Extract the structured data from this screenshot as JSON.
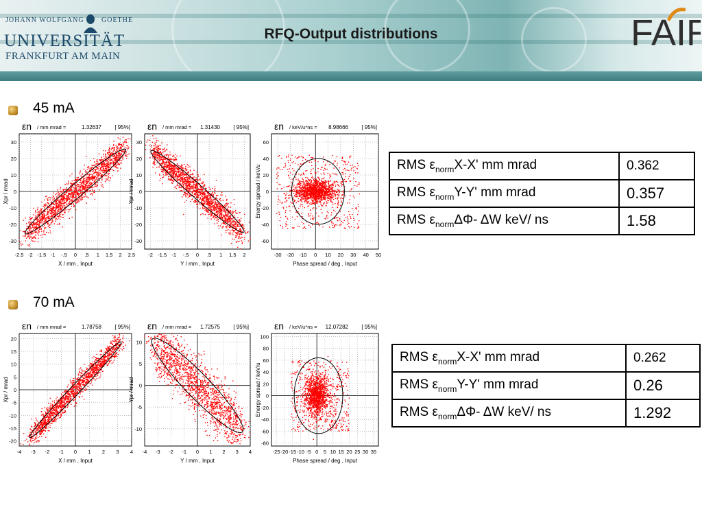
{
  "header": {
    "title": "RFQ-Output distributions",
    "university": {
      "top_left": "JOHANN WOLFGANG",
      "top_right": "GOETHE",
      "name": "UNIVERSITÄT",
      "city": "FRANKFURT AM MAIN"
    },
    "fair_logo": "FAIR"
  },
  "sections": [
    {
      "heading": "45 mA",
      "table": [
        {
          "label_pre": "RMS ε",
          "label_sub": "norm",
          "label_post": "X-X'  mm mrad",
          "value": "0.362"
        },
        {
          "label_pre": "RMS ε",
          "label_sub": "norm",
          "label_post": "Y-Y'  mm mrad",
          "value": "0.357"
        },
        {
          "label_pre": "RMS ε",
          "label_sub": "norm",
          "label_post": "ΔΦ- ΔW keV/ ns",
          "value": "1.58"
        }
      ]
    },
    {
      "heading": "70 mA",
      "table": [
        {
          "label_pre": "RMS ε",
          "label_sub": "norm",
          "label_post": "X-X'  mm mrad",
          "value": "0.262"
        },
        {
          "label_pre": "RMS ε",
          "label_sub": "norm",
          "label_post": "Y-Y'  mm mrad",
          "value": "0.26"
        },
        {
          "label_pre": "RMS ε",
          "label_sub": "norm",
          "label_post": "ΔΦ- ΔW keV/ ns",
          "value": "1.292"
        }
      ]
    }
  ],
  "chart_data": [
    {
      "type": "scatter",
      "header_symbol": "εn",
      "header_units": "/ mm  mrad =",
      "header_value": "1.32637",
      "header_pct": "[ 95%]",
      "xlabel": "X / mm ,  Input",
      "ylabel": "Xpr / mrad",
      "xlim": [
        -2.5,
        2.5
      ],
      "ylim": [
        -35,
        35
      ],
      "xticks": [
        "-2.5",
        "-2",
        "-1.5",
        "-1",
        "-.5",
        "0",
        ".5",
        "1",
        "1.5",
        "2",
        "2.5"
      ],
      "xtick_vals": [
        -2.5,
        -2,
        -1.5,
        -1,
        -0.5,
        0,
        0.5,
        1,
        1.5,
        2,
        2.5
      ],
      "yticks": [
        "30",
        "20",
        "10",
        "0",
        "-10",
        "-20",
        "-30"
      ],
      "ytick_vals": [
        30,
        20,
        10,
        0,
        -10,
        -20,
        -30
      ],
      "distribution": {
        "shape": "tilted-ellipse",
        "slope": 11.5,
        "major": 2.1,
        "minor": 4.8,
        "points": 1800
      },
      "ellipse": {
        "cx": 0,
        "cy": 0,
        "a": 2.2,
        "b": 5.2
      },
      "color": "#ff0000"
    },
    {
      "type": "scatter",
      "header_symbol": "εn",
      "header_units": "/ mm  mrad =",
      "header_value": "1.31430",
      "header_pct": "[ 95%]",
      "xlabel": "Y / mm ,  Input",
      "ylabel": "Ypr / mrad",
      "xlim": [
        -2.25,
        2.25
      ],
      "ylim": [
        -35,
        35
      ],
      "xticks": [
        "-2",
        "-1.5",
        "-1",
        "-.5",
        "0",
        ".5",
        "1",
        "1.5",
        "2"
      ],
      "xtick_vals": [
        -2,
        -1.5,
        -1,
        -0.5,
        0,
        0.5,
        1,
        1.5,
        2
      ],
      "yticks": [
        "30",
        "20",
        "10",
        "0",
        "-10",
        "-20",
        "-30"
      ],
      "ytick_vals": [
        30,
        20,
        10,
        0,
        -10,
        -20,
        -30
      ],
      "distribution": {
        "shape": "tilted-ellipse",
        "slope": -12.5,
        "major": 1.85,
        "minor": 4.8,
        "points": 1800
      },
      "ellipse": {
        "cx": 0,
        "cy": 0,
        "a": 1.95,
        "b": 5.3
      },
      "color": "#ff0000"
    },
    {
      "type": "scatter",
      "header_symbol": "εn",
      "header_units": "/ keV/u*ns =",
      "header_value": "8.98666",
      "header_pct": "[ 95%]",
      "xlabel": "Phase spread / deg ,  Input",
      "ylabel": "Energy spread / keV/u",
      "xlim": [
        -35,
        50
      ],
      "ylim": [
        -70,
        70
      ],
      "xticks": [
        "-30",
        "-20",
        "-10",
        "0",
        "10",
        "20",
        "30",
        "40",
        "50"
      ],
      "xtick_vals": [
        -30,
        -20,
        -10,
        0,
        10,
        20,
        30,
        40,
        50
      ],
      "yticks": [
        "60",
        "40",
        "20",
        "0",
        "-20",
        "-40",
        "-60"
      ],
      "ytick_vals": [
        60,
        40,
        20,
        0,
        -20,
        -40,
        -60
      ],
      "distribution": {
        "shape": "core-halo",
        "core_x": 17,
        "core_y": 12,
        "halo_x": 33,
        "halo_y": 45,
        "points": 1800
      },
      "ellipse": {
        "cx": 2,
        "cy": 0,
        "a": 21,
        "b": 40
      },
      "color": "#ff0000"
    },
    {
      "type": "scatter",
      "header_symbol": "εn",
      "header_units": "/ mm  mrad =",
      "header_value": "1.78758",
      "header_pct": "[ 95%]",
      "xlabel": "X / mm ,  Input",
      "ylabel": "Xpr / mrad",
      "xlim": [
        -4,
        4
      ],
      "ylim": [
        -22,
        22
      ],
      "xticks": [
        "-4",
        "-3",
        "-2",
        "-1",
        "0",
        "1",
        "2",
        "3",
        "4"
      ],
      "xtick_vals": [
        -4,
        -3,
        -2,
        -1,
        0,
        1,
        2,
        3,
        4
      ],
      "yticks": [
        "20",
        "15",
        "10",
        "5",
        "0",
        "-5",
        "-10",
        "-15",
        "-20"
      ],
      "ytick_vals": [
        20,
        15,
        10,
        5,
        0,
        -5,
        -10,
        -15,
        -20
      ],
      "distribution": {
        "shape": "tilted-ellipse",
        "slope": 5.8,
        "major": 3.05,
        "minor": 2.4,
        "points": 1600
      },
      "ellipse": {
        "cx": 0,
        "cy": 0,
        "a": 3.2,
        "b": 2.6
      },
      "color": "#ff0000"
    },
    {
      "type": "scatter",
      "header_symbol": "εn",
      "header_units": "/ mm  mrad =",
      "header_value": "1.72575",
      "header_pct": "[ 95%]",
      "xlabel": "Y / mm ,  Input",
      "ylabel": "Ypr / mrad",
      "xlim": [
        -4,
        4
      ],
      "ylim": [
        -14,
        12
      ],
      "xticks": [
        "-4",
        "-3",
        "-2",
        "-1",
        "0",
        "1",
        "2",
        "3",
        "4"
      ],
      "xtick_vals": [
        -4,
        -3,
        -2,
        -1,
        0,
        1,
        2,
        3,
        4
      ],
      "yticks": [
        "10",
        "5",
        "0",
        "-5",
        "-10"
      ],
      "ytick_vals": [
        10,
        5,
        0,
        -5,
        -10
      ],
      "distribution": {
        "shape": "tilted-ellipse",
        "slope": -3.0,
        "major": 3.2,
        "minor": 3.6,
        "points": 1600
      },
      "ellipse": {
        "cx": 0,
        "cy": 0,
        "a": 3.4,
        "b": 3.9
      },
      "color": "#ff0000"
    },
    {
      "type": "scatter",
      "header_symbol": "εn",
      "header_units": "/ keV/u*ns =",
      "header_value": "12.07282",
      "header_pct": "[ 95%]",
      "xlabel": "Phase spread / deg ,  Input",
      "ylabel": "Energy spread / keV/u",
      "xlim": [
        -28,
        38
      ],
      "ylim": [
        -85,
        105
      ],
      "xticks": [
        "-25",
        "-20",
        "-15",
        "-10",
        "-5",
        "0",
        "5",
        "10",
        "15",
        "20",
        "25",
        "30",
        "35"
      ],
      "xtick_vals": [
        -25,
        -20,
        -15,
        -10,
        -5,
        0,
        5,
        10,
        15,
        20,
        25,
        30,
        35
      ],
      "yticks": [
        "100",
        "80",
        "60",
        "40",
        "20",
        "0",
        "-20",
        "-40",
        "-60",
        "-80"
      ],
      "ytick_vals": [
        100,
        80,
        60,
        40,
        20,
        0,
        -20,
        -40,
        -60,
        -80
      ],
      "distribution": {
        "shape": "core-halo",
        "core_x": 8,
        "core_y": 28,
        "halo_x": 18,
        "halo_y": 60,
        "points": 1600
      },
      "ellipse": {
        "cx": 1,
        "cy": 0,
        "a": 15,
        "b": 64
      },
      "color": "#ff0000"
    }
  ]
}
